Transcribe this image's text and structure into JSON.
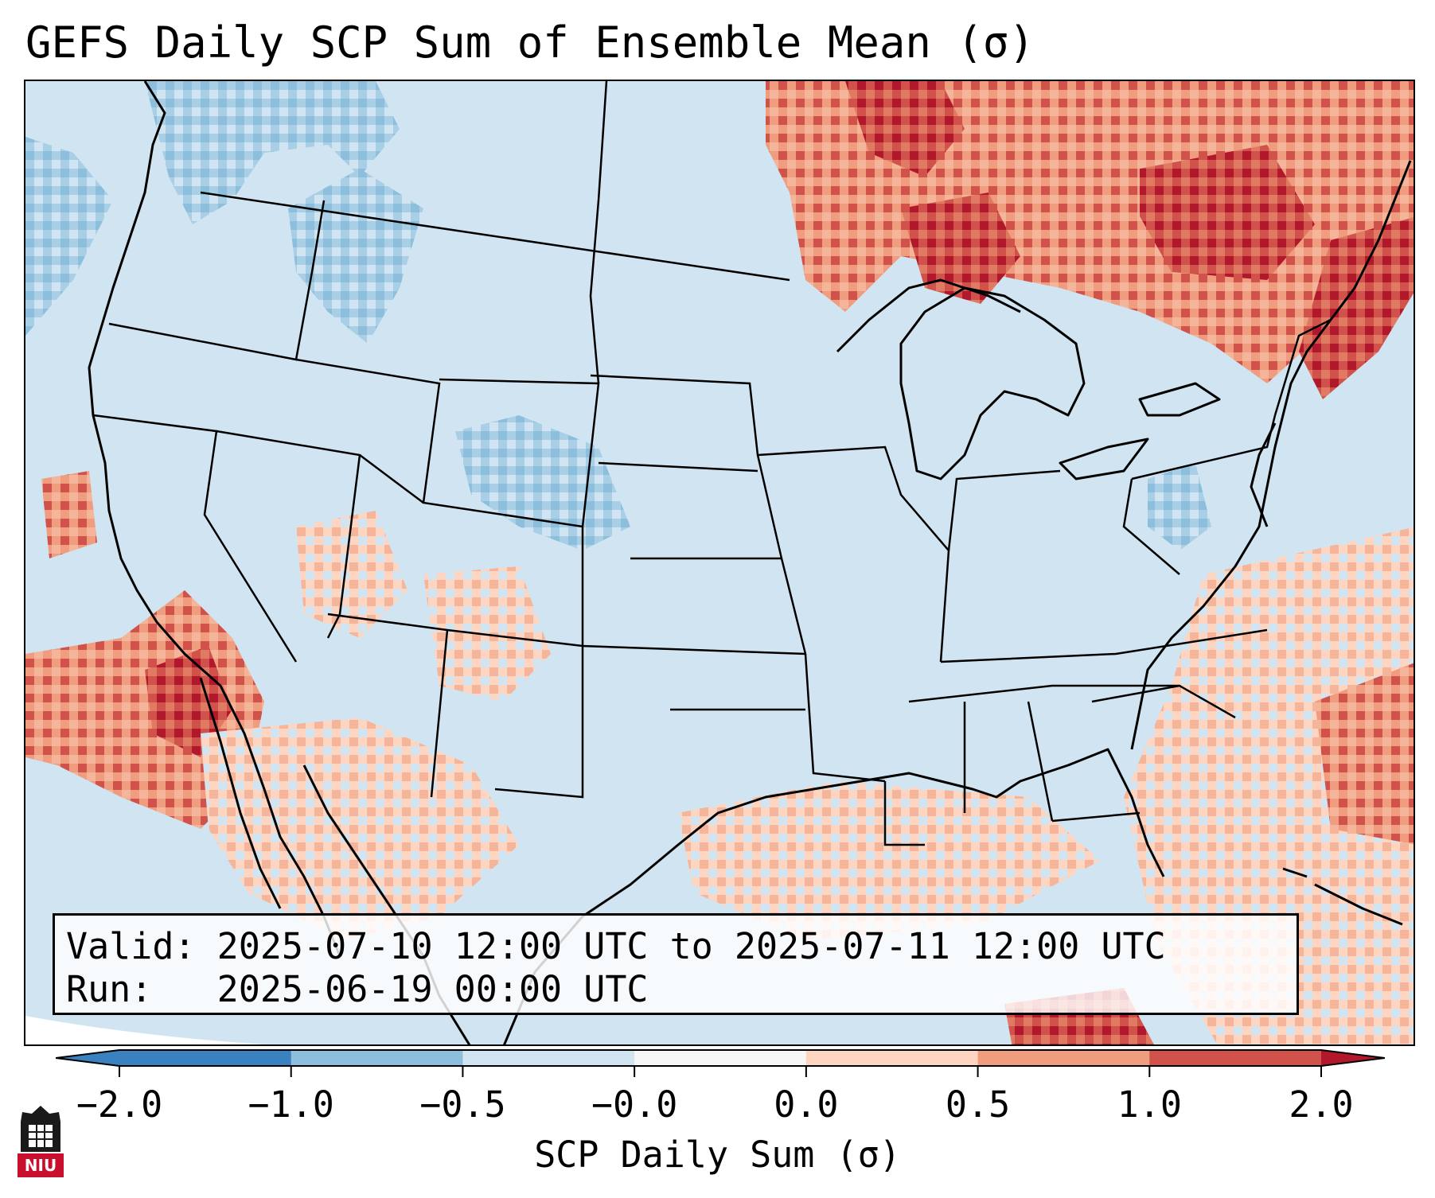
{
  "title": "GEFS Daily SCP Sum of Ensemble Mean (σ)",
  "info": {
    "valid_label": "Valid:",
    "valid_value": "2025-07-10 12:00 UTC to 2025-07-11 12:00 UTC",
    "run_label": "Run:",
    "run_value": "2025-06-19 00:00 UTC"
  },
  "colorbar": {
    "title": "SCP Daily Sum (σ)",
    "ticks": [
      "−2.0",
      "−1.0",
      "−0.5",
      "−0.0",
      "0.0",
      "0.5",
      "1.0",
      "2.0"
    ],
    "colors": [
      "#3a82bf",
      "#8dbfdd",
      "#d0e4f1",
      "#f7f7f7",
      "#fdd5c0",
      "#f09d7f",
      "#d1524a",
      "#b2182b"
    ]
  },
  "logo": {
    "text": "NIU",
    "color": "#c8102e"
  },
  "map": {
    "projection": "Lambert conformal, continental US",
    "background_color": "#d0e4f1",
    "anomaly_regions": [
      {
        "region": "Pacific Northwest",
        "category": "-1.0 to -0.5"
      },
      {
        "region": "Central Colorado Rockies",
        "category": "-1.0 to -0.5"
      },
      {
        "region": "Western Virginia",
        "category": "-1.0 to -0.5"
      },
      {
        "region": "Southern Ontario / Upper Great Lakes",
        "category": "1.0 to 2.0"
      },
      {
        "region": "Northern Maine / New Brunswick",
        "category": "1.0 to 2.0"
      },
      {
        "region": "Eastern Pacific off Baja California",
        "category": "1.0 to 2.0"
      },
      {
        "region": "Gulf of Mexico",
        "category": "0.0 to 0.5"
      },
      {
        "region": "Western Atlantic",
        "category": "0.0 to 1.0"
      },
      {
        "region": "Southwest / Sonora",
        "category": "0.0 to 1.0"
      }
    ]
  }
}
